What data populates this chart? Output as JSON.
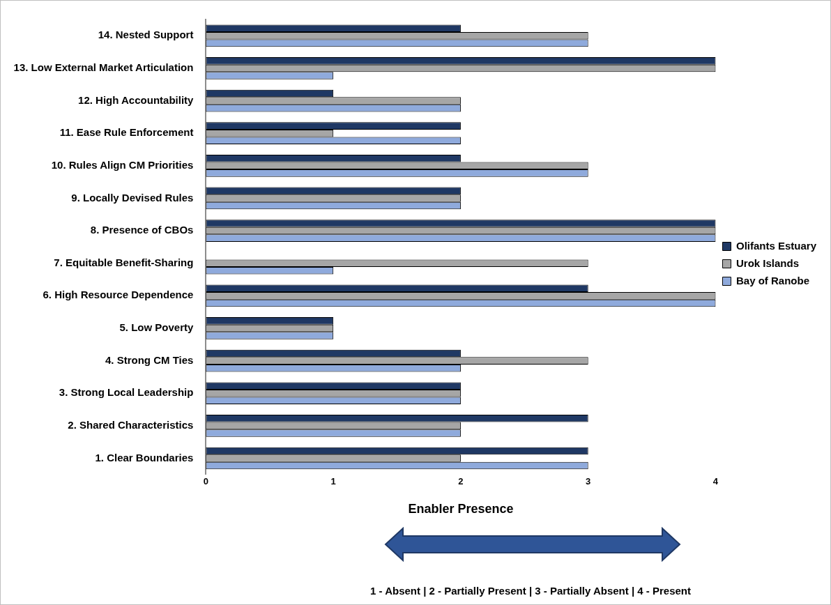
{
  "chart_data": {
    "type": "bar",
    "orientation": "horizontal",
    "xlabel": "Enabler Presence",
    "categories": [
      "14. Nested Support",
      "13. Low External Market Articulation",
      "12. High Accountability",
      "11. Ease Rule Enforcement",
      "10. Rules Align CM Priorities",
      "9. Locally Devised Rules",
      "8. Presence of CBOs",
      "7. Equitable Benefit-Sharing",
      "6. High Resource Dependence",
      "5. Low Poverty",
      "4. Strong CM Ties",
      "3. Strong Local Leadership",
      "2. Shared Characteristics",
      "1. Clear Boundaries"
    ],
    "series": [
      {
        "name": "Olifants Estuary",
        "color": "#1f3864",
        "values": [
          2,
          4,
          1,
          2,
          2,
          2,
          4,
          null,
          3,
          1,
          2,
          2,
          3,
          3
        ]
      },
      {
        "name": "Urok Islands",
        "color": "#a6a6a6",
        "values": [
          3,
          4,
          2,
          1,
          3,
          2,
          4,
          3,
          4,
          1,
          3,
          2,
          2,
          2
        ]
      },
      {
        "name": "Bay of Ranobe",
        "color": "#8faadc",
        "values": [
          3,
          1,
          2,
          2,
          3,
          2,
          4,
          1,
          4,
          1,
          2,
          2,
          2,
          3
        ]
      }
    ],
    "xlim": [
      0,
      4
    ],
    "xticks": [
      0,
      1,
      2,
      3,
      4
    ],
    "grid": false,
    "legend": "right",
    "annotations": [
      "1 - Absent | 2 - Partially Present | 3 - Partially Absent | 4 - Present"
    ]
  }
}
